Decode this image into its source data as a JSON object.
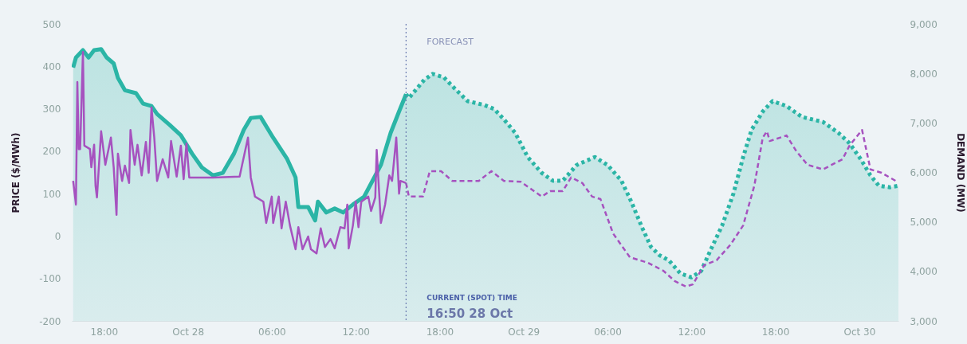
{
  "chart_data": {
    "type": "line",
    "ylabel": "PRICE ($/MWh)",
    "y2label": "DEMAND (MW)",
    "xlim": [
      "--10-27T15:42",
      "--10-30T02:48"
    ],
    "xticks": [
      {
        "value": "--10-27T18:00",
        "label": "18:00"
      },
      {
        "value": "--10-28T00:00",
        "label": "Oct 28"
      },
      {
        "value": "--10-28T06:00",
        "label": "06:00"
      },
      {
        "value": "--10-28T12:00",
        "label": "12:00"
      },
      {
        "value": "--10-28T18:00",
        "label": "18:00"
      },
      {
        "value": "--10-29T00:00",
        "label": "Oct 29"
      },
      {
        "value": "--10-29T06:00",
        "label": "06:00"
      },
      {
        "value": "--10-29T12:00",
        "label": "12:00"
      },
      {
        "value": "--10-29T18:00",
        "label": "18:00"
      },
      {
        "value": "--10-30T00:00",
        "label": "Oct 30"
      }
    ],
    "ylim": [
      -200,
      500
    ],
    "yticks": [
      -200,
      -100,
      0,
      100,
      200,
      300,
      400,
      500
    ],
    "y2lim": [
      3000,
      9000
    ],
    "y2ticks": [
      {
        "value": 3000,
        "label": "3,000"
      },
      {
        "value": 4000,
        "label": "4,000"
      },
      {
        "value": 5000,
        "label": "5,000"
      },
      {
        "value": 6000,
        "label": "6,000"
      },
      {
        "value": 7000,
        "label": "7,000"
      },
      {
        "value": 8000,
        "label": "8,000"
      },
      {
        "value": 9000,
        "label": "9,000"
      }
    ],
    "series": [
      {
        "type": "area",
        "axis": "y2",
        "color": "#2bb5a6",
        "line_style": "solid",
        "x": [
          "--10-27T15:48",
          "--10-27T16:00",
          "--10-27T16:30",
          "--10-27T16:54",
          "--10-27T17:18",
          "--10-27T17:48",
          "--10-27T18:12",
          "--10-27T18:42",
          "--10-27T19:00",
          "--10-27T19:30",
          "--10-27T20:18",
          "--10-27T20:48",
          "--10-27T21:24",
          "--10-27T21:48",
          "--10-27T22:42",
          "--10-27T23:30",
          "--10-28T00:18",
          "--10-28T01:00",
          "--10-28T01:48",
          "--10-28T02:30",
          "--10-28T03:18",
          "--10-28T04:00",
          "--10-28T04:30",
          "--10-28T05:12",
          "--10-28T06:06",
          "--10-28T07:06",
          "--10-28T07:42",
          "--10-28T07:54",
          "--10-28T08:36",
          "--10-28T09:06",
          "--10-28T09:18",
          "--10-28T09:54",
          "--10-28T10:30",
          "--10-28T11:06",
          "--10-28T11:48",
          "--10-28T12:36",
          "--10-28T13:48",
          "--10-28T14:30",
          "--10-28T15:06",
          "--10-28T15:36"
        ],
        "values": [
          8120,
          8320,
          8470,
          8320,
          8470,
          8490,
          8320,
          8200,
          7910,
          7660,
          7600,
          7390,
          7340,
          7180,
          6960,
          6750,
          6380,
          6100,
          5940,
          5990,
          6380,
          6860,
          7100,
          7120,
          6700,
          6270,
          5900,
          5300,
          5300,
          5030,
          5410,
          5190,
          5270,
          5190,
          5350,
          5510,
          6150,
          6800,
          7230,
          7580
        ]
      },
      {
        "type": "area",
        "axis": "y2",
        "color": "#2bb5a6",
        "line_style": "dotted",
        "x": [
          "--10-28T15:36",
          "--10-28T15:48",
          "--10-28T16:54",
          "--10-28T17:30",
          "--10-28T18:18",
          "--10-28T19:12",
          "--10-28T20:00",
          "--10-28T21:12",
          "--10-28T21:54",
          "--10-28T22:36",
          "--10-28T23:24",
          "--10-29T00:18",
          "--10-29T01:18",
          "--10-29T02:06",
          "--10-29T02:48",
          "--10-29T03:48",
          "--10-29T05:06",
          "--10-29T06:00",
          "--10-29T07:00",
          "--10-29T07:42",
          "--10-29T08:30",
          "--10-29T09:06",
          "--10-29T09:42",
          "--10-29T10:24",
          "--10-29T11:12",
          "--10-29T12:00",
          "--10-29T12:42",
          "--10-29T13:24",
          "--10-29T14:12",
          "--10-29T15:00",
          "--10-29T15:42",
          "--10-29T16:18",
          "--10-29T17:06",
          "--10-29T17:48",
          "--10-29T18:48",
          "--10-29T19:54",
          "--10-29T21:24",
          "--10-29T22:30",
          "--10-29T23:18",
          "--10-30T00:06",
          "--10-30T00:48",
          "--10-30T01:24",
          "--10-30T02:12",
          "--10-30T02:48"
        ],
        "values": [
          7580,
          7500,
          7870,
          7990,
          7920,
          7660,
          7440,
          7360,
          7280,
          7070,
          6800,
          6310,
          5990,
          5830,
          5830,
          6150,
          6310,
          6150,
          5830,
          5410,
          4870,
          4500,
          4330,
          4220,
          3960,
          3880,
          4010,
          4450,
          4930,
          5570,
          6310,
          6860,
          7230,
          7440,
          7340,
          7120,
          7020,
          6800,
          6590,
          6270,
          5940,
          5730,
          5700,
          5730
        ]
      },
      {
        "color": "#a652bf",
        "line_style": "solid",
        "x": [
          "--10-27T15:48",
          "--10-27T16:00",
          "--10-27T16:06",
          "--10-27T16:12",
          "--10-27T16:18",
          "--10-27T16:30",
          "--10-27T16:36",
          "--10-27T17:00",
          "--10-27T17:06",
          "--10-27T17:18",
          "--10-27T17:24",
          "--10-27T17:30",
          "--10-27T17:48",
          "--10-27T18:06",
          "--10-27T18:30",
          "--10-27T18:42",
          "--10-27T18:54",
          "--10-27T19:00",
          "--10-27T19:18",
          "--10-27T19:30",
          "--10-27T19:48",
          "--10-27T19:54",
          "--10-27T20:12",
          "--10-27T20:24",
          "--10-27T20:42",
          "--10-27T21:00",
          "--10-27T21:12",
          "--10-27T21:24",
          "--10-27T21:36",
          "--10-27T21:48",
          "--10-27T22:12",
          "--10-27T22:36",
          "--10-27T22:48",
          "--10-27T23:12",
          "--10-27T23:30",
          "--10-27T23:42",
          "--10-27T23:54",
          "--10-28T00:06",
          "--10-28T01:48",
          "--10-28T03:42",
          "--10-28T04:18",
          "--10-28T04:30",
          "--10-28T04:48",
          "--10-28T05:24",
          "--10-28T05:36",
          "--10-28T06:00",
          "--10-28T06:06",
          "--10-28T06:30",
          "--10-28T06:42",
          "--10-28T07:00",
          "--10-28T07:18",
          "--10-28T07:42",
          "--10-28T07:54",
          "--10-28T08:12",
          "--10-28T08:36",
          "--10-28T08:48",
          "--10-28T09:12",
          "--10-28T09:30",
          "--10-28T09:48",
          "--10-28T10:12",
          "--10-28T10:30",
          "--10-28T10:54",
          "--10-28T11:12",
          "--10-28T11:24",
          "--10-28T11:30",
          "--10-28T11:48",
          "--10-28T12:00",
          "--10-28T12:12",
          "--10-28T12:24",
          "--10-28T12:54",
          "--10-28T13:06",
          "--10-28T13:24",
          "--10-28T13:30",
          "--10-28T13:48",
          "--10-28T14:06",
          "--10-28T14:24",
          "--10-28T14:36",
          "--10-28T14:54",
          "--10-28T15:06",
          "--10-28T15:12",
          "--10-28T15:36"
        ],
        "values": [
          130,
          74,
          363,
          205,
          205,
          434,
          213,
          205,
          162,
          215,
          119,
          91,
          247,
          168,
          232,
          162,
          50,
          194,
          130,
          166,
          125,
          250,
          168,
          215,
          143,
          222,
          149,
          303,
          232,
          130,
          181,
          138,
          224,
          140,
          213,
          134,
          218,
          138,
          138,
          140,
          232,
          138,
          93,
          81,
          31,
          93,
          31,
          93,
          18,
          81,
          25,
          -31,
          21,
          -31,
          -1,
          -31,
          -41,
          18,
          -26,
          -7,
          -29,
          21,
          18,
          74,
          -29,
          25,
          81,
          21,
          81,
          93,
          59,
          91,
          203,
          31,
          74,
          143,
          130,
          232,
          100,
          130,
          125
        ]
      },
      {
        "color": "#a652bf",
        "line_style": "dashed",
        "x": [
          "--10-28T15:36",
          "--10-28T15:48",
          "--10-28T16:48",
          "--10-28T17:18",
          "--10-28T18:06",
          "--10-28T18:54",
          "--10-28T20:48",
          "--10-28T21:42",
          "--10-28T22:36",
          "--10-28T23:48",
          "--10-29T01:18",
          "--10-29T01:54",
          "--10-29T02:48",
          "--10-29T03:24",
          "--10-29T04:12",
          "--10-29T04:54",
          "--10-29T05:30",
          "--10-29T06:24",
          "--10-29T07:36",
          "--10-29T08:54",
          "--10-29T10:00",
          "--10-29T10:48",
          "--10-29T11:36",
          "--10-29T12:06",
          "--10-29T12:54",
          "--10-29T13:48",
          "--10-29T14:48",
          "--10-29T15:42",
          "--10-29T16:30",
          "--10-29T17:06",
          "--10-29T17:24",
          "--10-29T17:36",
          "--10-29T18:48",
          "--10-29T19:30",
          "--10-29T20:18",
          "--10-29T21:24",
          "--10-29T22:48",
          "--10-29T23:18",
          "--10-30T00:12",
          "--10-30T00:48",
          "--10-30T01:36",
          "--10-30T02:36"
        ],
        "values": [
          125,
          93,
          93,
          153,
          153,
          130,
          130,
          153,
          130,
          128,
          93,
          106,
          106,
          138,
          125,
          93,
          87,
          6,
          -50,
          -63,
          -82,
          -106,
          -119,
          -114,
          -69,
          -57,
          -20,
          25,
          119,
          232,
          247,
          224,
          237,
          200,
          168,
          157,
          181,
          213,
          250,
          157,
          149,
          130
        ]
      }
    ],
    "ref_lines": [
      {
        "axis": "x",
        "value": "--10-28T15:36",
        "label": "FORECAST",
        "color": "#6a7bb0",
        "line_style": "dashed"
      }
    ],
    "annotations": [
      "CURRENT (SPOT) TIME",
      "16:50 28 Oct"
    ]
  }
}
